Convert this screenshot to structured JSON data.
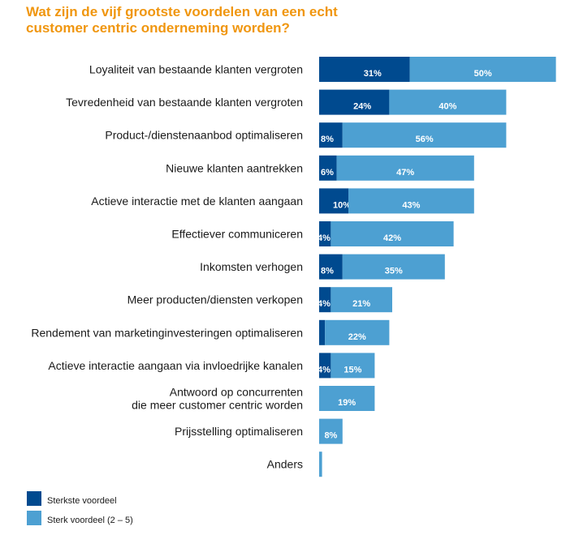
{
  "chart_data": {
    "type": "bar",
    "orientation": "horizontal",
    "stacked": true,
    "title": "Wat zijn de vijf grootste voordelen van een echt\ncustomer centric onderneming worden?",
    "xlabel": "",
    "ylabel": "",
    "xlim": [
      0,
      81
    ],
    "grid": false,
    "legend_position": "bottom-left",
    "categories": [
      "Loyaliteit van bestaande klanten vergroten",
      "Tevredenheid van bestaande klanten vergroten",
      "Product-/dienstenaanbod optimaliseren",
      "Nieuwe klanten aantrekken",
      "Actieve interactie met de klanten aangaan",
      "Effectiever communiceren",
      "Inkomsten verhogen",
      "Meer producten/diensten verkopen",
      "Rendement van marketinginvesteringen optimaliseren",
      "Actieve interactie aangaan via invloedrijke kanalen",
      "Antwoord op concurrenten\ndie meer customer centric worden",
      "Prijsstelling optimaliseren",
      "Anders"
    ],
    "series": [
      {
        "name": "Sterkste voordeel",
        "color": "#004a8f",
        "values": [
          31,
          24,
          8,
          6,
          10,
          4,
          8,
          4,
          2,
          4,
          0,
          0,
          0
        ],
        "labels": [
          "31%",
          "24%",
          "8%",
          "6%",
          "10%",
          "4%",
          "8%",
          "4%",
          "",
          "4%",
          "",
          "",
          ""
        ]
      },
      {
        "name": "Sterk voordeel (2 – 5)",
        "color": "#4da0d2",
        "values": [
          50,
          40,
          56,
          47,
          43,
          42,
          35,
          21,
          22,
          15,
          19,
          8,
          1
        ],
        "labels": [
          "50%",
          "40%",
          "56%",
          "47%",
          "43%",
          "42%",
          "35%",
          "21%",
          "22%",
          "15%",
          "19%",
          "8%",
          ""
        ]
      }
    ]
  }
}
